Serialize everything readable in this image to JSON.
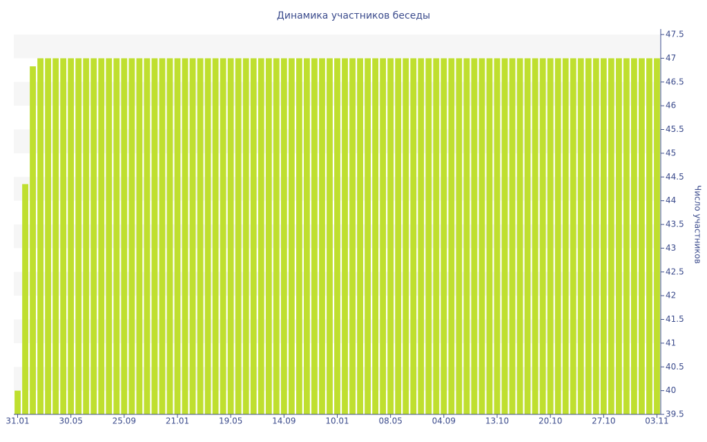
{
  "chart_data": {
    "type": "bar",
    "title": "Динамика участников беседы",
    "y_label": "Число участников",
    "categories": [
      "31.01",
      null,
      null,
      null,
      null,
      null,
      null,
      "30.05",
      null,
      null,
      null,
      null,
      null,
      null,
      "25.09",
      null,
      null,
      null,
      null,
      null,
      null,
      "21.01",
      null,
      null,
      null,
      null,
      null,
      null,
      "19.05",
      null,
      null,
      null,
      null,
      null,
      null,
      "14.09",
      null,
      null,
      null,
      null,
      null,
      null,
      "10.01",
      null,
      null,
      null,
      null,
      null,
      null,
      "08.05",
      null,
      null,
      null,
      null,
      null,
      null,
      "04.09",
      null,
      null,
      null,
      null,
      null,
      null,
      "13.10",
      null,
      null,
      null,
      null,
      null,
      null,
      "20.10",
      null,
      null,
      null,
      null,
      null,
      null,
      "27.10",
      null,
      null,
      null,
      null,
      null,
      null,
      "03.11"
    ],
    "values": [
      40,
      44.35,
      46.83,
      47,
      47,
      47,
      47,
      47,
      47,
      47,
      47,
      47,
      47,
      47,
      47,
      47,
      47,
      47,
      47,
      47,
      47,
      47,
      47,
      47,
      47,
      47,
      47,
      47,
      47,
      47,
      47,
      47,
      47,
      47,
      47,
      47,
      47,
      47,
      47,
      47,
      47,
      47,
      47,
      47,
      47,
      47,
      47,
      47,
      47,
      47,
      47,
      47,
      47,
      47,
      47,
      47,
      47,
      47,
      47,
      47,
      47,
      47,
      47,
      47,
      47,
      47,
      47,
      47,
      47,
      47,
      47,
      47,
      47,
      47,
      47,
      47,
      47,
      47,
      47,
      47,
      47,
      47,
      47,
      47,
      47
    ],
    "color": "#bfdf2f",
    "ylim": [
      39.5,
      47.5
    ],
    "yticks": [
      39.5,
      40,
      40.5,
      41,
      41.5,
      42,
      42.5,
      43,
      43.5,
      44,
      44.5,
      45,
      45.5,
      46,
      46.5,
      47,
      47.5
    ],
    "y_axis_side": "right"
  }
}
